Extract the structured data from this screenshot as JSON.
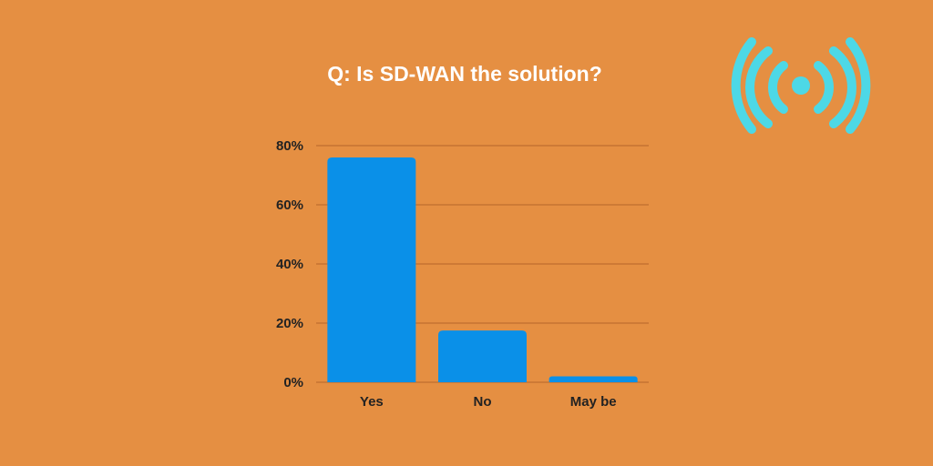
{
  "theme": {
    "background": "#E58F42",
    "bar_color": "#0A90E8",
    "grid_color": "#B5652A",
    "icon_color": "#4DD8E6",
    "title_color": "#FFFFFF",
    "label_color": "#222222"
  },
  "decor": {
    "icon": "wifi-signal-icon"
  },
  "chart_data": {
    "type": "bar",
    "title": "Q: Is SD-WAN the solution?",
    "xlabel": "",
    "ylabel": "",
    "categories": [
      "Yes",
      "No",
      "May be"
    ],
    "values": [
      76,
      17.5,
      2
    ],
    "ylim": [
      0,
      80
    ],
    "yticks": [
      0,
      20,
      40,
      60,
      80
    ],
    "ytick_labels": [
      "0%",
      "20%",
      "40%",
      "60%",
      "80%"
    ],
    "grid": true,
    "legend": "none"
  }
}
